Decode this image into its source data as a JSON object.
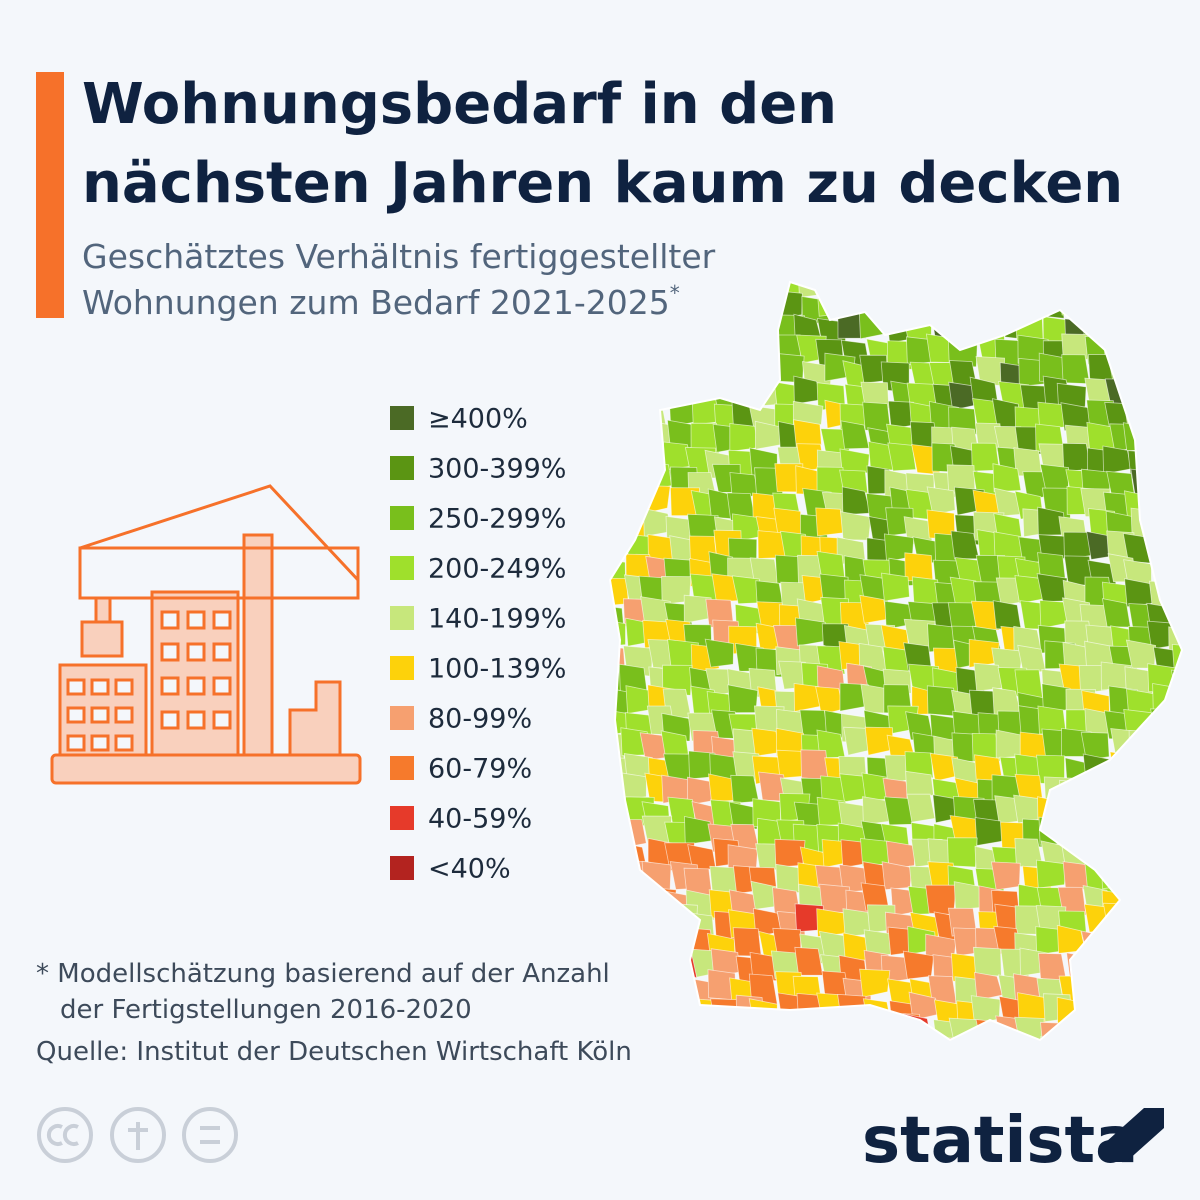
{
  "header": {
    "title": [
      "Wohnungsbedarf in den",
      "nächsten Jahren kaum zu decken"
    ],
    "subtitle": [
      "Geschätztes Verhältnis fertiggestellter",
      "Wohnungen zum Bedarf 2021-2025"
    ],
    "subtitle_mark": "*"
  },
  "legend": [
    {
      "label": "≥400%",
      "color": "#4b6a25"
    },
    {
      "label": "300-399%",
      "color": "#5b9513"
    },
    {
      "label": "250-299%",
      "color": "#79bf1c"
    },
    {
      "label": "200-249%",
      "color": "#9fe02c"
    },
    {
      "label": "140-199%",
      "color": "#c7e77c"
    },
    {
      "label": "100-139%",
      "color": "#fdd20b"
    },
    {
      "label": "80-99%",
      "color": "#f6a070"
    },
    {
      "label": "60-79%",
      "color": "#f67a2c"
    },
    {
      "label": "40-59%",
      "color": "#e63a2a"
    },
    {
      "label": "<40%",
      "color": "#b3231f"
    }
  ],
  "footnote": [
    "* Modellschätzung basierend auf der Anzahl",
    "der Fertigstellungen 2016-2020"
  ],
  "source": "Quelle: Institut der Deutschen Wirtschaft Köln",
  "brand": "statista"
}
